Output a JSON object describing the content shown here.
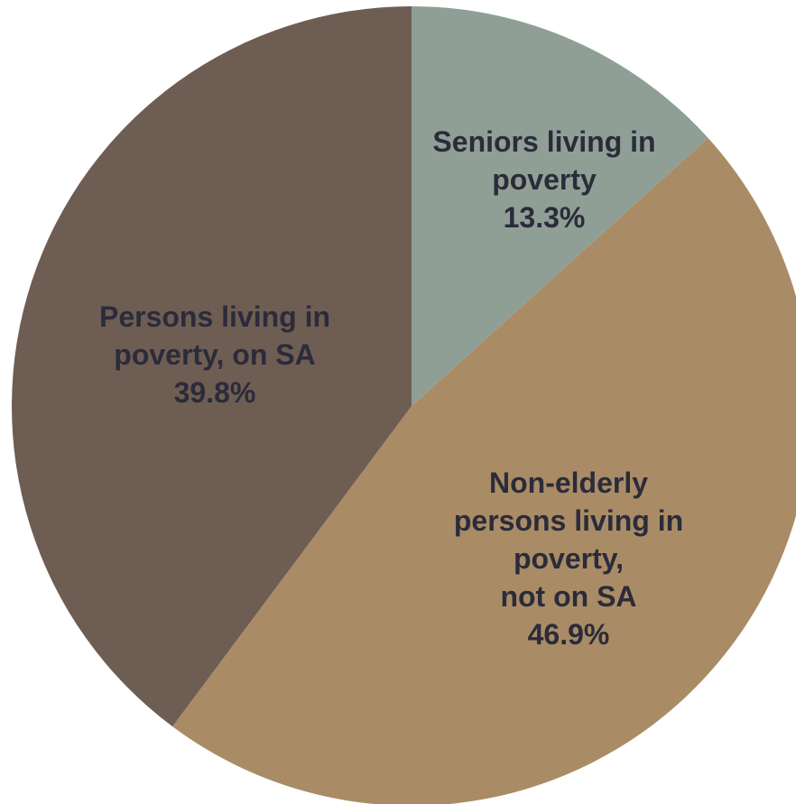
{
  "chart_data": {
    "type": "pie",
    "title": "",
    "start_angle": "12 o'clock",
    "direction": "clockwise",
    "slices": [
      {
        "category": "Seniors living in poverty",
        "value": 13.3,
        "value_label": "13.3%",
        "label_lines": [
          "Seniors living in",
          "poverty",
          "13.3%"
        ],
        "color": "#8f9f96"
      },
      {
        "category": "Non-elderly persons living in poverty, not on SA",
        "value": 46.9,
        "value_label": "46.9%",
        "label_lines": [
          "Non-elderly",
          "persons living in",
          "poverty,",
          "not on SA",
          "46.9%"
        ],
        "color": "#a98c65"
      },
      {
        "category": "Persons living in poverty, on SA",
        "value": 39.8,
        "value_label": "39.8%",
        "label_lines": [
          "Persons living in",
          "poverty, on SA",
          "39.8%"
        ],
        "color": "#6e5d53"
      }
    ],
    "label_color": "#2b2b3a",
    "legend": "none"
  }
}
